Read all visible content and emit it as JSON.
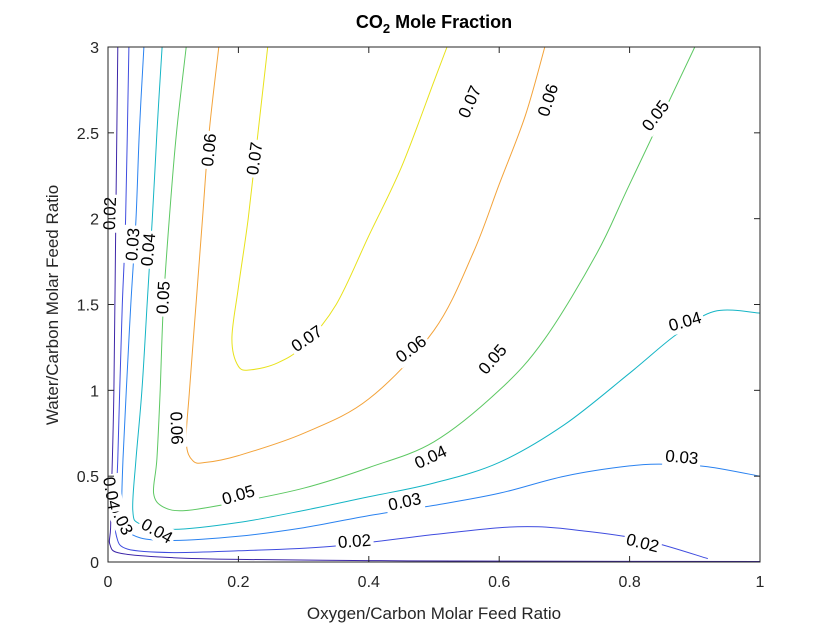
{
  "chart_data": {
    "type": "contour",
    "title": "CO₂ Mole Fraction",
    "title_base": "CO",
    "title_sub": "2",
    "title_rest": " Mole Fraction",
    "xlabel": "Oxygen/Carbon Molar Feed Ratio",
    "ylabel": "Water/Carbon Molar Feed Ratio",
    "xlim": [
      0,
      1
    ],
    "ylim": [
      0,
      3
    ],
    "xticks": [
      0,
      0.2,
      0.4,
      0.6,
      0.8,
      1
    ],
    "xtick_labels": [
      "0",
      "0.2",
      "0.4",
      "0.6",
      "0.8",
      "1"
    ],
    "yticks": [
      0,
      0.5,
      1,
      1.5,
      2,
      2.5,
      3
    ],
    "ytick_labels": [
      "0",
      "0.5",
      "1",
      "1.5",
      "2",
      "2.5",
      "3"
    ],
    "grid": false,
    "colors": {
      "0.01": "#3d26a8",
      "0.02": "#3f4cdf",
      "0.03": "#2a82f0",
      "0.04": "#15b5c5",
      "0.05": "#5dc863",
      "0.06": "#f3a33a",
      "0.07": "#e8e21b"
    },
    "levels": [
      {
        "level": 0.01,
        "paths": [
          [
            [
              0.015,
              3.0
            ],
            [
              0.012,
              2.0
            ],
            [
              0.009,
              1.0
            ],
            [
              0.006,
              0.5
            ],
            [
              0.004,
              0.2
            ],
            [
              0.003,
              0.1
            ],
            [
              0.02,
              0.05
            ],
            [
              0.1,
              0.025
            ],
            [
              0.2,
              0.015
            ],
            [
              0.4,
              0.008
            ],
            [
              0.6,
              0.005
            ],
            [
              1.0,
              0.003
            ]
          ]
        ]
      },
      {
        "level": 0.02,
        "paths": [
          [
            [
              0.032,
              3.0
            ],
            [
              0.027,
              2.0
            ],
            [
              0.022,
              1.5
            ],
            [
              0.018,
              1.0
            ],
            [
              0.015,
              0.6
            ],
            [
              0.012,
              0.3
            ],
            [
              0.013,
              0.15
            ],
            [
              0.03,
              0.075
            ],
            [
              0.1,
              0.055
            ],
            [
              0.2,
              0.065
            ],
            [
              0.34,
              0.09
            ],
            [
              0.5,
              0.16
            ],
            [
              0.6,
              0.2
            ],
            [
              0.66,
              0.205
            ],
            [
              0.72,
              0.185
            ],
            [
              0.82,
              0.13
            ],
            [
              0.92,
              0.02
            ]
          ]
        ]
      },
      {
        "level": 0.03,
        "paths": [
          [
            [
              0.055,
              3.0
            ],
            [
              0.048,
              2.5
            ],
            [
              0.043,
              2.0
            ],
            [
              0.035,
              1.5
            ],
            [
              0.028,
              1.0
            ],
            [
              0.023,
              0.6
            ],
            [
              0.021,
              0.3
            ],
            [
              0.025,
              0.2
            ],
            [
              0.05,
              0.14
            ],
            [
              0.1,
              0.125
            ],
            [
              0.2,
              0.15
            ],
            [
              0.3,
              0.2
            ],
            [
              0.4,
              0.27
            ],
            [
              0.5,
              0.33
            ],
            [
              0.6,
              0.4
            ],
            [
              0.7,
              0.5
            ],
            [
              0.8,
              0.56
            ],
            [
              0.86,
              0.57
            ],
            [
              0.92,
              0.555
            ],
            [
              1.0,
              0.5
            ]
          ]
        ]
      },
      {
        "level": 0.04,
        "paths": [
          [
            [
              0.083,
              3.0
            ],
            [
              0.075,
              2.5
            ],
            [
              0.068,
              2.0
            ],
            [
              0.06,
              1.5
            ],
            [
              0.052,
              1.0
            ],
            [
              0.043,
              0.6
            ],
            [
              0.038,
              0.3
            ],
            [
              0.05,
              0.22
            ],
            [
              0.1,
              0.19
            ],
            [
              0.2,
              0.23
            ],
            [
              0.3,
              0.3
            ],
            [
              0.4,
              0.38
            ],
            [
              0.5,
              0.46
            ],
            [
              0.6,
              0.58
            ],
            [
              0.7,
              0.8
            ],
            [
              0.8,
              1.1
            ],
            [
              0.87,
              1.32
            ],
            [
              0.93,
              1.46
            ],
            [
              1.0,
              1.45
            ]
          ]
        ]
      },
      {
        "level": 0.05,
        "paths": [
          [
            [
              0.12,
              3.0
            ],
            [
              0.105,
              2.5
            ],
            [
              0.094,
              2.0
            ],
            [
              0.085,
              1.5
            ],
            [
              0.08,
              1.0
            ],
            [
              0.075,
              0.6
            ],
            [
              0.07,
              0.4
            ],
            [
              0.085,
              0.32
            ],
            [
              0.12,
              0.3
            ],
            [
              0.2,
              0.35
            ],
            [
              0.3,
              0.43
            ],
            [
              0.4,
              0.55
            ],
            [
              0.5,
              0.7
            ],
            [
              0.6,
              1.0
            ],
            [
              0.67,
              1.3
            ],
            [
              0.75,
              1.8
            ],
            [
              0.8,
              2.2
            ],
            [
              0.9,
              3.0
            ]
          ]
        ]
      },
      {
        "level": 0.06,
        "paths": [
          [
            [
              0.17,
              3.0
            ],
            [
              0.155,
              2.5
            ],
            [
              0.145,
              2.0
            ],
            [
              0.135,
              1.5
            ],
            [
              0.125,
              1.0
            ],
            [
              0.12,
              0.7
            ],
            [
              0.13,
              0.59
            ],
            [
              0.15,
              0.58
            ],
            [
              0.2,
              0.62
            ],
            [
              0.3,
              0.75
            ],
            [
              0.4,
              0.95
            ],
            [
              0.5,
              1.35
            ],
            [
              0.56,
              1.8
            ],
            [
              0.6,
              2.2
            ],
            [
              0.64,
              2.6
            ],
            [
              0.67,
              3.0
            ]
          ]
        ]
      },
      {
        "level": 0.07,
        "paths": [
          [
            [
              0.245,
              3.0
            ],
            [
              0.23,
              2.5
            ],
            [
              0.215,
              2.0
            ],
            [
              0.2,
              1.6
            ],
            [
              0.19,
              1.3
            ],
            [
              0.2,
              1.14
            ],
            [
              0.22,
              1.12
            ],
            [
              0.26,
              1.16
            ],
            [
              0.3,
              1.26
            ],
            [
              0.35,
              1.5
            ],
            [
              0.4,
              1.9
            ],
            [
              0.45,
              2.3
            ],
            [
              0.5,
              2.8
            ],
            [
              0.52,
              3.0
            ]
          ]
        ]
      }
    ],
    "contour_labels": [
      {
        "text": "0.02",
        "x": 0.003,
        "y": 2.03,
        "angle": -88
      },
      {
        "text": "0.03",
        "x": 0.038,
        "y": 1.85,
        "angle": -86
      },
      {
        "text": "0.04",
        "x": 0.062,
        "y": 1.82,
        "angle": -85
      },
      {
        "text": "0.05",
        "x": 0.085,
        "y": 1.54,
        "angle": -87
      },
      {
        "text": "0.06",
        "x": 0.155,
        "y": 2.4,
        "angle": -84
      },
      {
        "text": "0.07",
        "x": 0.225,
        "y": 2.35,
        "angle": -82
      },
      {
        "text": "0.07",
        "x": 0.555,
        "y": 2.68,
        "angle": -66
      },
      {
        "text": "0.06",
        "x": 0.675,
        "y": 2.69,
        "angle": -72
      },
      {
        "text": "0.05",
        "x": 0.84,
        "y": 2.6,
        "angle": -53
      },
      {
        "text": "0.07",
        "x": 0.305,
        "y": 1.3,
        "angle": -34
      },
      {
        "text": "0.06",
        "x": 0.465,
        "y": 1.24,
        "angle": -37
      },
      {
        "text": "0.05",
        "x": 0.59,
        "y": 1.18,
        "angle": -49
      },
      {
        "text": "0.04",
        "x": 0.885,
        "y": 1.4,
        "angle": -16
      },
      {
        "text": "0.06",
        "x": 0.105,
        "y": 0.78,
        "angle": 88
      },
      {
        "text": "0.04",
        "x": 0.495,
        "y": 0.61,
        "angle": -25
      },
      {
        "text": "0.03",
        "x": 0.88,
        "y": 0.61,
        "angle": 5
      },
      {
        "text": "0.05",
        "x": 0.2,
        "y": 0.39,
        "angle": -16
      },
      {
        "text": "0.03",
        "x": 0.455,
        "y": 0.35,
        "angle": -12
      },
      {
        "text": "0.04",
        "x": 0.075,
        "y": 0.18,
        "angle": 30
      },
      {
        "text": "0.02",
        "x": 0.378,
        "y": 0.12,
        "angle": -4
      },
      {
        "text": "0.02",
        "x": 0.82,
        "y": 0.11,
        "angle": 14
      },
      {
        "text": "0.03",
        "x": 0.02,
        "y": 0.25,
        "angle": 64
      },
      {
        "text": "0.04",
        "x": 0.005,
        "y": 0.4,
        "angle": 80
      }
    ]
  }
}
